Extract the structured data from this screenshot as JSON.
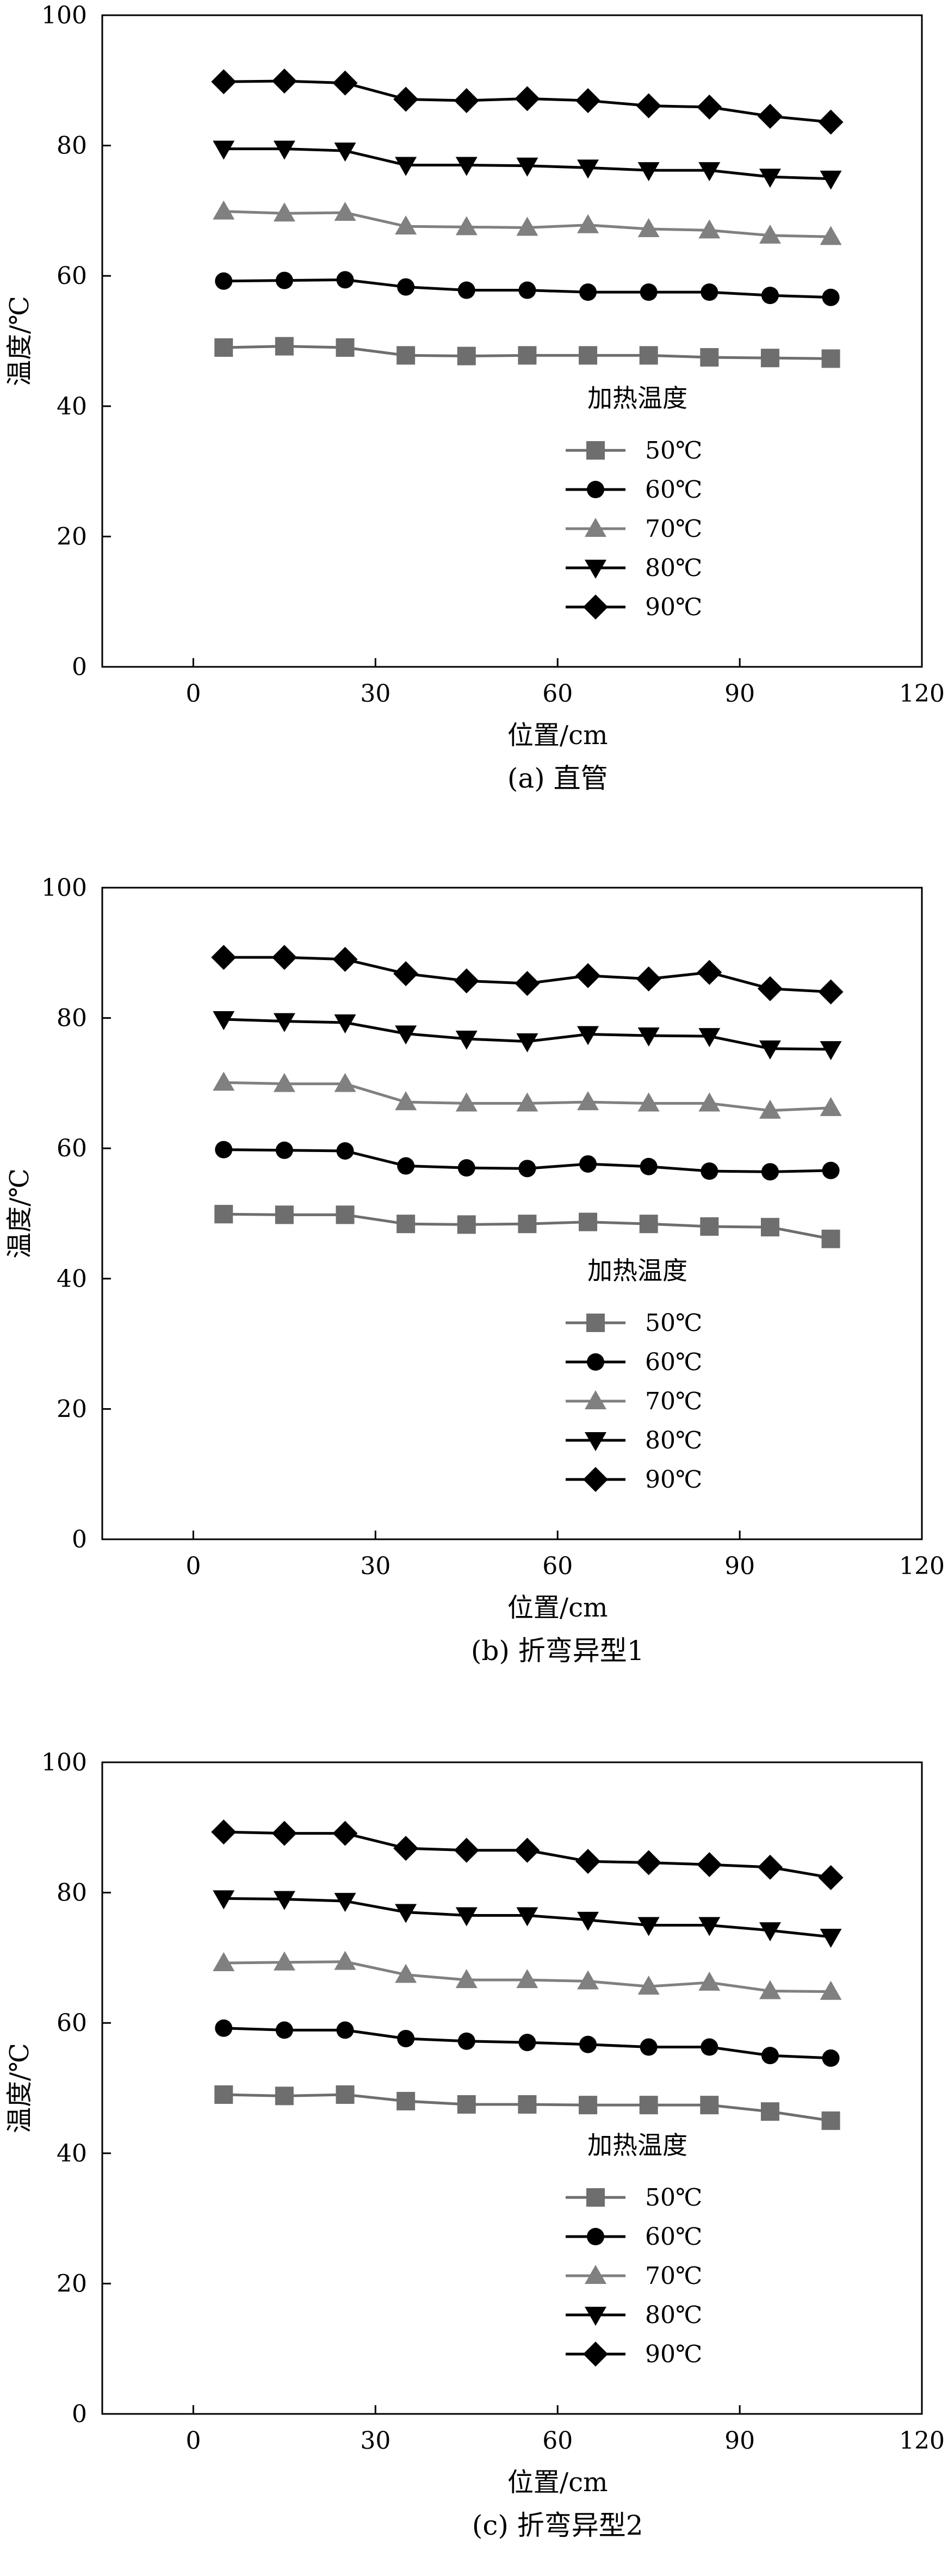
{
  "colors": {
    "s50": "#6e6e6e",
    "s60": "#000000",
    "s70": "#808080",
    "s80": "#000000",
    "s90": "#000000"
  },
  "chart_data": [
    {
      "type": "line",
      "caption": "(a) 直管",
      "xlabel": "位置/cm",
      "ylabel": "温度/℃",
      "xlim": [
        -15,
        120
      ],
      "ylim": [
        0,
        100
      ],
      "xticks": [
        0,
        30,
        60,
        90,
        120
      ],
      "yticks": [
        0,
        20,
        40,
        60,
        80,
        100
      ],
      "legend_title": "加热温度",
      "legend_position": "lower-right",
      "grid": false,
      "x": [
        5,
        15,
        25,
        35,
        45,
        55,
        65,
        75,
        85,
        95,
        105
      ],
      "series": [
        {
          "name": "50℃",
          "marker": "square",
          "values": [
            49.0,
            49.2,
            49.0,
            47.8,
            47.7,
            47.8,
            47.8,
            47.8,
            47.5,
            47.4,
            47.3
          ]
        },
        {
          "name": "60℃",
          "marker": "circle",
          "values": [
            59.2,
            59.3,
            59.4,
            58.3,
            57.8,
            57.8,
            57.5,
            57.5,
            57.5,
            57.0,
            56.7
          ]
        },
        {
          "name": "70℃",
          "marker": "triangle-up",
          "values": [
            69.9,
            69.6,
            69.7,
            67.6,
            67.5,
            67.4,
            67.8,
            67.2,
            67.0,
            66.2,
            66.0
          ]
        },
        {
          "name": "80℃",
          "marker": "triangle-down",
          "values": [
            79.5,
            79.5,
            79.2,
            77.0,
            77.0,
            76.9,
            76.6,
            76.2,
            76.2,
            75.2,
            74.9
          ]
        },
        {
          "name": "90℃",
          "marker": "diamond",
          "values": [
            89.8,
            89.9,
            89.6,
            87.1,
            86.9,
            87.2,
            86.9,
            86.1,
            85.9,
            84.5,
            83.6
          ]
        }
      ]
    },
    {
      "type": "line",
      "caption": "(b) 折弯异型1",
      "xlabel": "位置/cm",
      "ylabel": "温度/℃",
      "xlim": [
        -15,
        120
      ],
      "ylim": [
        0,
        100
      ],
      "xticks": [
        0,
        30,
        60,
        90,
        120
      ],
      "yticks": [
        0,
        20,
        40,
        60,
        80,
        100
      ],
      "legend_title": "加热温度",
      "legend_position": "lower-right",
      "grid": false,
      "x": [
        5,
        15,
        25,
        35,
        45,
        55,
        65,
        75,
        85,
        95,
        105
      ],
      "series": [
        {
          "name": "50℃",
          "marker": "square",
          "values": [
            49.9,
            49.8,
            49.8,
            48.4,
            48.3,
            48.4,
            48.7,
            48.4,
            48.0,
            47.9,
            46.1
          ]
        },
        {
          "name": "60℃",
          "marker": "circle",
          "values": [
            59.8,
            59.7,
            59.6,
            57.3,
            57.0,
            56.9,
            57.6,
            57.2,
            56.5,
            56.4,
            56.6
          ]
        },
        {
          "name": "70℃",
          "marker": "triangle-up",
          "values": [
            70.1,
            69.9,
            69.9,
            67.1,
            66.9,
            66.9,
            67.1,
            66.9,
            66.9,
            65.8,
            66.2
          ]
        },
        {
          "name": "80℃",
          "marker": "triangle-down",
          "values": [
            79.8,
            79.5,
            79.3,
            77.6,
            76.8,
            76.4,
            77.5,
            77.3,
            77.2,
            75.3,
            75.2
          ]
        },
        {
          "name": "90℃",
          "marker": "diamond",
          "values": [
            89.3,
            89.3,
            89.0,
            86.8,
            85.7,
            85.3,
            86.5,
            86.0,
            87.0,
            84.5,
            84.0
          ]
        }
      ]
    },
    {
      "type": "line",
      "caption": "(c) 折弯异型2",
      "xlabel": "位置/cm",
      "ylabel": "温度/℃",
      "xlim": [
        -15,
        120
      ],
      "ylim": [
        0,
        100
      ],
      "xticks": [
        0,
        30,
        60,
        90,
        120
      ],
      "yticks": [
        0,
        20,
        40,
        60,
        80,
        100
      ],
      "legend_title": "加热温度",
      "legend_position": "lower-right",
      "grid": false,
      "x": [
        5,
        15,
        25,
        35,
        45,
        55,
        65,
        75,
        85,
        95,
        105
      ],
      "series": [
        {
          "name": "50℃",
          "marker": "square",
          "values": [
            49.0,
            48.8,
            49.0,
            48.0,
            47.5,
            47.5,
            47.4,
            47.4,
            47.4,
            46.4,
            45.0
          ]
        },
        {
          "name": "60℃",
          "marker": "circle",
          "values": [
            59.2,
            58.9,
            58.9,
            57.6,
            57.2,
            57.0,
            56.7,
            56.3,
            56.3,
            55.0,
            54.6
          ]
        },
        {
          "name": "70℃",
          "marker": "triangle-up",
          "values": [
            69.2,
            69.3,
            69.4,
            67.4,
            66.6,
            66.6,
            66.4,
            65.6,
            66.2,
            64.9,
            64.8
          ]
        },
        {
          "name": "80℃",
          "marker": "triangle-down",
          "values": [
            79.1,
            79.0,
            78.7,
            77.0,
            76.5,
            76.5,
            75.8,
            75.0,
            75.0,
            74.2,
            73.2
          ]
        },
        {
          "name": "90℃",
          "marker": "diamond",
          "values": [
            89.3,
            89.1,
            89.1,
            86.8,
            86.5,
            86.5,
            84.8,
            84.6,
            84.3,
            83.9,
            82.3
          ]
        }
      ]
    }
  ]
}
